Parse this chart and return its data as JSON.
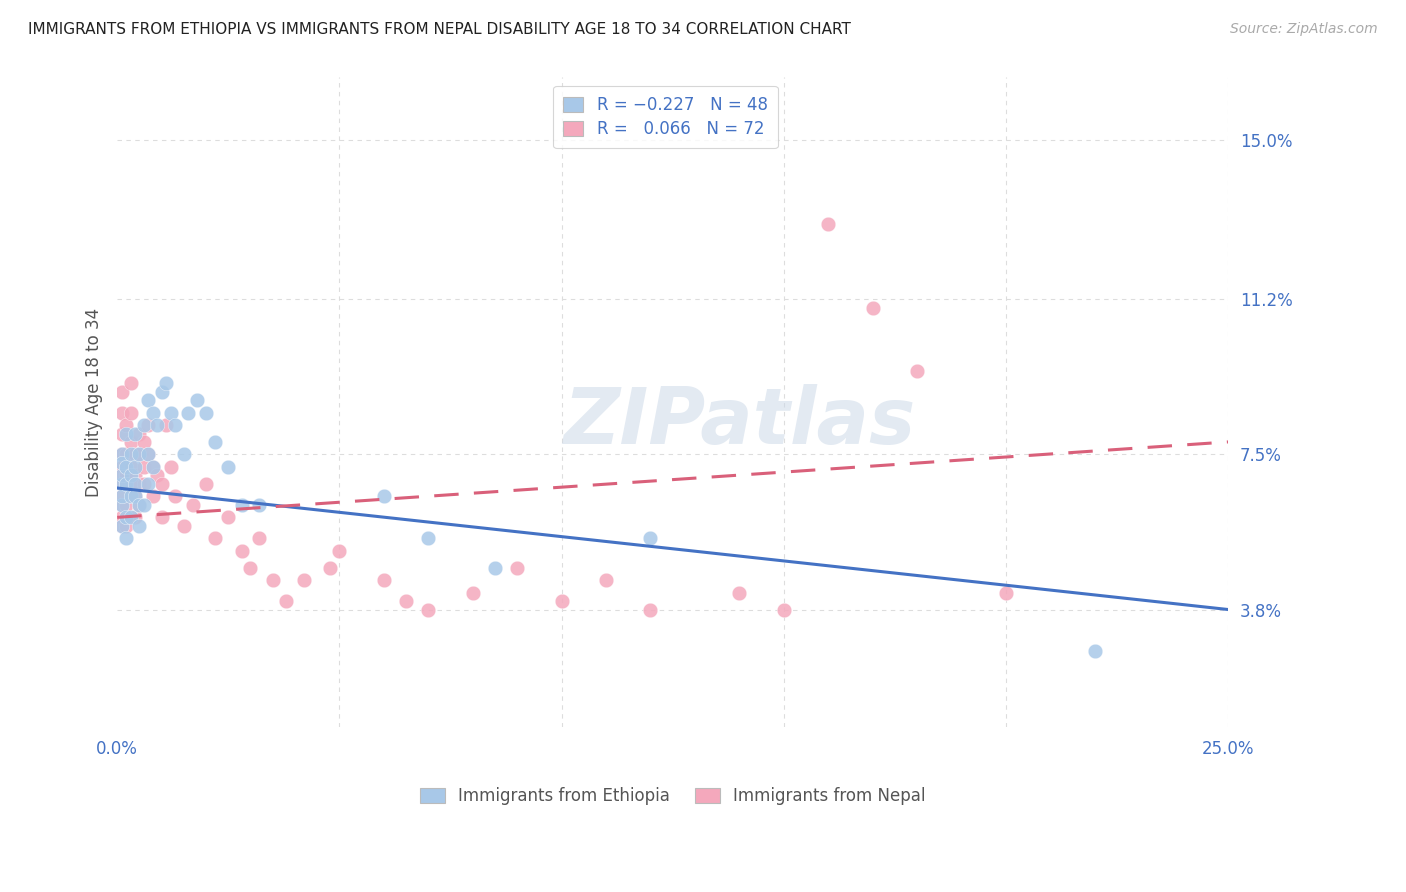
{
  "title": "IMMIGRANTS FROM ETHIOPIA VS IMMIGRANTS FROM NEPAL DISABILITY AGE 18 TO 34 CORRELATION CHART",
  "source_text": "Source: ZipAtlas.com",
  "ylabel": "Disability Age 18 to 34",
  "xlim": [
    0.0,
    0.25
  ],
  "ylim": [
    0.01,
    0.165
  ],
  "xticks": [
    0.0,
    0.05,
    0.1,
    0.15,
    0.2,
    0.25
  ],
  "ytick_values_right": [
    0.038,
    0.075,
    0.112,
    0.15
  ],
  "ytick_labels_right": [
    "3.8%",
    "7.5%",
    "11.2%",
    "15.0%"
  ],
  "watermark": "ZIPatlas",
  "color_ethiopia": "#a8c8e8",
  "color_nepal": "#f4a8bc",
  "color_ethiopia_line": "#4472c4",
  "color_nepal_line": "#d9607a",
  "color_text_blue": "#4472c4",
  "background_color": "#ffffff",
  "grid_color": "#dddddd",
  "eth_line_x0": 0.0,
  "eth_line_y0": 0.067,
  "eth_line_x1": 0.25,
  "eth_line_y1": 0.038,
  "nep_line_x0": 0.0,
  "nep_line_y0": 0.06,
  "nep_line_x1": 0.25,
  "nep_line_y1": 0.078,
  "ethiopia_x": [
    0.001,
    0.001,
    0.001,
    0.001,
    0.001,
    0.001,
    0.001,
    0.002,
    0.002,
    0.002,
    0.002,
    0.002,
    0.003,
    0.003,
    0.003,
    0.003,
    0.004,
    0.004,
    0.004,
    0.004,
    0.005,
    0.005,
    0.005,
    0.006,
    0.006,
    0.007,
    0.007,
    0.007,
    0.008,
    0.008,
    0.009,
    0.01,
    0.011,
    0.012,
    0.013,
    0.015,
    0.016,
    0.018,
    0.02,
    0.022,
    0.025,
    0.028,
    0.032,
    0.06,
    0.07,
    0.085,
    0.12,
    0.22
  ],
  "ethiopia_y": [
    0.075,
    0.068,
    0.063,
    0.058,
    0.07,
    0.065,
    0.073,
    0.06,
    0.072,
    0.08,
    0.055,
    0.068,
    0.065,
    0.07,
    0.06,
    0.075,
    0.072,
    0.065,
    0.068,
    0.08,
    0.063,
    0.058,
    0.075,
    0.082,
    0.063,
    0.088,
    0.075,
    0.068,
    0.085,
    0.072,
    0.082,
    0.09,
    0.092,
    0.085,
    0.082,
    0.075,
    0.085,
    0.088,
    0.085,
    0.078,
    0.072,
    0.063,
    0.063,
    0.065,
    0.055,
    0.048,
    0.055,
    0.028
  ],
  "nepal_x": [
    0.001,
    0.001,
    0.001,
    0.001,
    0.001,
    0.001,
    0.001,
    0.001,
    0.001,
    0.001,
    0.001,
    0.001,
    0.002,
    0.002,
    0.002,
    0.002,
    0.002,
    0.002,
    0.003,
    0.003,
    0.003,
    0.003,
    0.003,
    0.003,
    0.004,
    0.004,
    0.004,
    0.004,
    0.005,
    0.005,
    0.005,
    0.005,
    0.006,
    0.006,
    0.006,
    0.007,
    0.007,
    0.008,
    0.008,
    0.009,
    0.01,
    0.01,
    0.011,
    0.012,
    0.013,
    0.015,
    0.017,
    0.02,
    0.022,
    0.025,
    0.028,
    0.03,
    0.032,
    0.035,
    0.038,
    0.042,
    0.048,
    0.05,
    0.06,
    0.065,
    0.07,
    0.08,
    0.09,
    0.1,
    0.11,
    0.12,
    0.14,
    0.15,
    0.16,
    0.17,
    0.18,
    0.2
  ],
  "nepal_y": [
    0.075,
    0.072,
    0.068,
    0.065,
    0.07,
    0.063,
    0.06,
    0.058,
    0.08,
    0.075,
    0.09,
    0.085,
    0.082,
    0.075,
    0.07,
    0.068,
    0.063,
    0.058,
    0.078,
    0.072,
    0.068,
    0.065,
    0.085,
    0.092,
    0.075,
    0.07,
    0.065,
    0.06,
    0.08,
    0.075,
    0.068,
    0.063,
    0.078,
    0.072,
    0.068,
    0.082,
    0.075,
    0.072,
    0.065,
    0.07,
    0.068,
    0.06,
    0.082,
    0.072,
    0.065,
    0.058,
    0.063,
    0.068,
    0.055,
    0.06,
    0.052,
    0.048,
    0.055,
    0.045,
    0.04,
    0.045,
    0.048,
    0.052,
    0.045,
    0.04,
    0.038,
    0.042,
    0.048,
    0.04,
    0.045,
    0.038,
    0.042,
    0.038,
    0.13,
    0.11,
    0.095,
    0.042
  ]
}
